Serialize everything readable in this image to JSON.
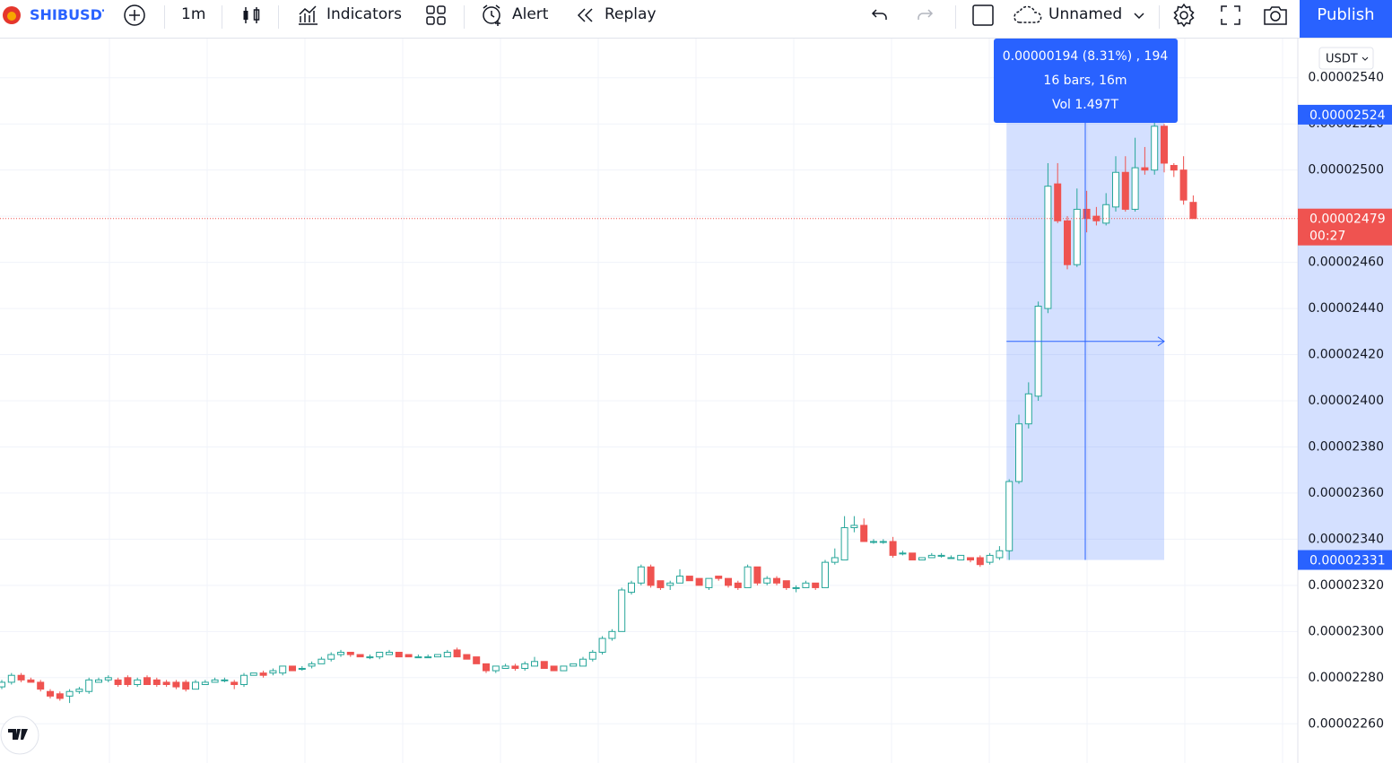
{
  "toolbar": {
    "symbol": "SHIBUSDT",
    "interval": "1m",
    "indicators": "Indicators",
    "alert": "Alert",
    "replay": "Replay",
    "layout": "Unnamed",
    "publish": "Publish"
  },
  "chart_data": {
    "type": "candlestick",
    "colors": {
      "up": "#26a69a",
      "down": "#ef5350",
      "marker": "#2962ff"
    },
    "currency": "USDT",
    "ylim": [
      2.243e-05,
      2.557e-05
    ],
    "yticks": [
      {
        "value": 2.26e-05,
        "label": "0.00002260"
      },
      {
        "value": 2.28e-05,
        "label": "0.00002280"
      },
      {
        "value": 2.3e-05,
        "label": "0.00002300"
      },
      {
        "value": 2.32e-05,
        "label": "0.00002320"
      },
      {
        "value": 2.34e-05,
        "label": "0.00002340"
      },
      {
        "value": 2.36e-05,
        "label": "0.00002360"
      },
      {
        "value": 2.38e-05,
        "label": "0.00002380"
      },
      {
        "value": 2.4e-05,
        "label": "0.00002400"
      },
      {
        "value": 2.42e-05,
        "label": "0.00002420"
      },
      {
        "value": 2.44e-05,
        "label": "0.00002440"
      },
      {
        "value": 2.46e-05,
        "label": "0.00002460"
      },
      {
        "value": 2.48e-05,
        "label": "0.00002480"
      },
      {
        "value": 2.5e-05,
        "label": "0.00002500"
      },
      {
        "value": 2.52e-05,
        "label": "0.00002520"
      },
      {
        "value": 2.54e-05,
        "label": "0.00002540"
      }
    ],
    "grid": true,
    "open": [
      2.276e-05,
      2.278e-05,
      2.281e-05,
      2.279e-05,
      2.278e-05,
      2.274e-05,
      2.273e-05,
      2.272e-05,
      2.274e-05,
      2.274e-05,
      2.278e-05,
      2.279e-05,
      2.279e-05,
      2.28e-05,
      2.277e-05,
      2.28e-05,
      2.279e-05,
      2.278e-05,
      2.278e-05,
      2.278e-05,
      2.275e-05,
      2.277e-05,
      2.278e-05,
      2.279e-05,
      2.278e-05,
      2.277e-05,
      2.281e-05,
      2.282e-05,
      2.282e-05,
      2.282e-05,
      2.285e-05,
      2.284e-05,
      2.285e-05,
      2.286e-05,
      2.288e-05,
      2.29e-05,
      2.291e-05,
      2.29e-05,
      2.289e-05,
      2.289e-05,
      2.29e-05,
      2.291e-05,
      2.29e-05,
      2.289e-05,
      2.289e-05,
      2.289e-05,
      2.289e-05,
      2.292e-05,
      2.29e-05,
      2.289e-05,
      2.286e-05,
      2.283e-05,
      2.284e-05,
      2.285e-05,
      2.284e-05,
      2.285e-05,
      2.287e-05,
      2.285e-05,
      2.283e-05,
      2.285e-05,
      2.285e-05,
      2.288e-05,
      2.291e-05,
      2.297e-05,
      2.3e-05,
      2.317e-05,
      2.321e-05,
      2.328e-05,
      2.322e-05,
      2.32e-05,
      2.321e-05,
      2.324e-05,
      2.323e-05,
      2.319e-05,
      2.324e-05,
      2.323e-05,
      2.321e-05,
      2.319e-05,
      2.328e-05,
      2.321e-05,
      2.323e-05,
      2.322e-05,
      2.319e-05,
      2.319e-05,
      2.321e-05,
      2.319e-05,
      2.33e-05,
      2.331e-05,
      2.345e-05,
      2.346e-05,
      2.339e-05,
      2.339e-05,
      2.339e-05,
      2.334e-05,
      2.334e-05,
      2.331e-05,
      2.332e-05,
      2.333e-05,
      2.332e-05,
      2.331e-05,
      2.332e-05,
      2.332e-05,
      2.33e-05,
      2.332e-05,
      2.335e-05,
      2.365e-05,
      2.39e-05,
      2.402e-05,
      2.44e-05,
      2.494e-05,
      2.478e-05,
      2.459e-05,
      2.483e-05,
      2.48e-05,
      2.477e-05,
      2.484e-05,
      2.499e-05,
      2.483e-05,
      2.501e-05,
      2.5e-05,
      2.519e-05,
      2.502e-05,
      2.5e-05,
      2.486e-05
    ],
    "high": [
      2.279e-05,
      2.282e-05,
      2.282e-05,
      2.28e-05,
      2.279e-05,
      2.275e-05,
      2.274e-05,
      2.275e-05,
      2.276e-05,
      2.28e-05,
      2.28e-05,
      2.281e-05,
      2.28e-05,
      2.281e-05,
      2.28e-05,
      2.281e-05,
      2.28e-05,
      2.279e-05,
      2.279e-05,
      2.279e-05,
      2.279e-05,
      2.279e-05,
      2.28e-05,
      2.28e-05,
      2.279e-05,
      2.282e-05,
      2.282e-05,
      2.283e-05,
      2.284e-05,
      2.285e-05,
      2.285e-05,
      2.285e-05,
      2.287e-05,
      2.289e-05,
      2.291e-05,
      2.292e-05,
      2.291e-05,
      2.29e-05,
      2.29e-05,
      2.291e-05,
      2.292e-05,
      2.291e-05,
      2.29e-05,
      2.29e-05,
      2.29e-05,
      2.29e-05,
      2.292e-05,
      2.293e-05,
      2.29e-05,
      2.289e-05,
      2.286e-05,
      2.285e-05,
      2.286e-05,
      2.286e-05,
      2.287e-05,
      2.289e-05,
      2.287e-05,
      2.285e-05,
      2.285e-05,
      2.286e-05,
      2.289e-05,
      2.292e-05,
      2.298e-05,
      2.301e-05,
      2.319e-05,
      2.322e-05,
      2.329e-05,
      2.329e-05,
      2.322e-05,
      2.322e-05,
      2.327e-05,
      2.324e-05,
      2.323e-05,
      2.323e-05,
      2.324e-05,
      2.323e-05,
      2.322e-05,
      2.329e-05,
      2.328e-05,
      2.324e-05,
      2.324e-05,
      2.322e-05,
      2.32e-05,
      2.322e-05,
      2.321e-05,
      2.331e-05,
      2.336e-05,
      2.35e-05,
      2.35e-05,
      2.349e-05,
      2.34e-05,
      2.34e-05,
      2.341e-05,
      2.335e-05,
      2.334e-05,
      2.332e-05,
      2.334e-05,
      2.334e-05,
      2.333e-05,
      2.333e-05,
      2.332e-05,
      2.333e-05,
      2.334e-05,
      2.337e-05,
      2.366e-05,
      2.394e-05,
      2.408e-05,
      2.443e-05,
      2.503e-05,
      2.503e-05,
      2.48e-05,
      2.492e-05,
      2.491e-05,
      2.484e-05,
      2.49e-05,
      2.506e-05,
      2.506e-05,
      2.514e-05,
      2.51e-05,
      2.524e-05,
      2.52e-05,
      2.503e-05,
      2.506e-05,
      2.489e-05
    ],
    "low": [
      2.275e-05,
      2.277e-05,
      2.278e-05,
      2.278e-05,
      2.274e-05,
      2.271e-05,
      2.27e-05,
      2.269e-05,
      2.273e-05,
      2.273e-05,
      2.278e-05,
      2.278e-05,
      2.276e-05,
      2.276e-05,
      2.276e-05,
      2.277e-05,
      2.276e-05,
      2.276e-05,
      2.275e-05,
      2.274e-05,
      2.275e-05,
      2.277e-05,
      2.278e-05,
      2.278e-05,
      2.275e-05,
      2.276e-05,
      2.281e-05,
      2.28e-05,
      2.281e-05,
      2.281e-05,
      2.283e-05,
      2.283e-05,
      2.284e-05,
      2.286e-05,
      2.287e-05,
      2.289e-05,
      2.289e-05,
      2.289e-05,
      2.288e-05,
      2.288e-05,
      2.29e-05,
      2.289e-05,
      2.289e-05,
      2.289e-05,
      2.289e-05,
      2.289e-05,
      2.289e-05,
      2.289e-05,
      2.288e-05,
      2.286e-05,
      2.282e-05,
      2.282e-05,
      2.284e-05,
      2.283e-05,
      2.283e-05,
      2.285e-05,
      2.284e-05,
      2.283e-05,
      2.283e-05,
      2.285e-05,
      2.285e-05,
      2.287e-05,
      2.29e-05,
      2.296e-05,
      2.3e-05,
      2.316e-05,
      2.32e-05,
      2.319e-05,
      2.318e-05,
      2.318e-05,
      2.321e-05,
      2.322e-05,
      2.32e-05,
      2.318e-05,
      2.322e-05,
      2.319e-05,
      2.318e-05,
      2.319e-05,
      2.32e-05,
      2.32e-05,
      2.32e-05,
      2.318e-05,
      2.317e-05,
      2.319e-05,
      2.318e-05,
      2.319e-05,
      2.329e-05,
      2.331e-05,
      2.343e-05,
      2.339e-05,
      2.338e-05,
      2.338e-05,
      2.332e-05,
      2.333e-05,
      2.331e-05,
      2.331e-05,
      2.332e-05,
      2.332e-05,
      2.332e-05,
      2.331e-05,
      2.33e-05,
      2.328e-05,
      2.329e-05,
      2.331e-05,
      2.331e-05,
      2.364e-05,
      2.388e-05,
      2.4e-05,
      2.438e-05,
      2.477e-05,
      2.457e-05,
      2.458e-05,
      2.473e-05,
      2.476e-05,
      2.476e-05,
      2.482e-05,
      2.482e-05,
      2.482e-05,
      2.498e-05,
      2.498e-05,
      2.499e-05,
      2.497e-05,
      2.485e-05,
      2.479e-05
    ],
    "close": [
      2.278e-05,
      2.281e-05,
      2.279e-05,
      2.278e-05,
      2.275e-05,
      2.272e-05,
      2.271e-05,
      2.274e-05,
      2.275e-05,
      2.279e-05,
      2.279e-05,
      2.28e-05,
      2.277e-05,
      2.277e-05,
      2.279e-05,
      2.277e-05,
      2.277e-05,
      2.277e-05,
      2.276e-05,
      2.275e-05,
      2.278e-05,
      2.278e-05,
      2.279e-05,
      2.279e-05,
      2.277e-05,
      2.281e-05,
      2.282e-05,
      2.281e-05,
      2.283e-05,
      2.285e-05,
      2.283e-05,
      2.284e-05,
      2.286e-05,
      2.288e-05,
      2.29e-05,
      2.291e-05,
      2.29e-05,
      2.289e-05,
      2.289e-05,
      2.291e-05,
      2.291e-05,
      2.289e-05,
      2.289e-05,
      2.289e-05,
      2.289e-05,
      2.29e-05,
      2.291e-05,
      2.289e-05,
      2.288e-05,
      2.286e-05,
      2.283e-05,
      2.285e-05,
      2.285e-05,
      2.284e-05,
      2.286e-05,
      2.287e-05,
      2.284e-05,
      2.283e-05,
      2.285e-05,
      2.286e-05,
      2.288e-05,
      2.291e-05,
      2.297e-05,
      2.3e-05,
      2.318e-05,
      2.321e-05,
      2.328e-05,
      2.32e-05,
      2.319e-05,
      2.321e-05,
      2.324e-05,
      2.322e-05,
      2.32e-05,
      2.323e-05,
      2.323e-05,
      2.32e-05,
      2.319e-05,
      2.328e-05,
      2.321e-05,
      2.323e-05,
      2.321e-05,
      2.319e-05,
      2.319e-05,
      2.321e-05,
      2.319e-05,
      2.33e-05,
      2.332e-05,
      2.345e-05,
      2.346e-05,
      2.339e-05,
      2.339e-05,
      2.339e-05,
      2.333e-05,
      2.334e-05,
      2.331e-05,
      2.332e-05,
      2.333e-05,
      2.333e-05,
      2.332e-05,
      2.333e-05,
      2.331e-05,
      2.329e-05,
      2.333e-05,
      2.335e-05,
      2.365e-05,
      2.39e-05,
      2.403e-05,
      2.441e-05,
      2.493e-05,
      2.478e-05,
      2.459e-05,
      2.483e-05,
      2.479e-05,
      2.478e-05,
      2.485e-05,
      2.499e-05,
      2.483e-05,
      2.501e-05,
      2.5e-05,
      2.519e-05,
      2.503e-05,
      2.5e-05,
      2.487e-05,
      2.479e-05
    ],
    "last_price": 2.479e-05,
    "countdown": "00:27",
    "marker_prices": [
      2.524e-05,
      2.331e-05
    ],
    "measure": {
      "change": "0.00000194 (8.31%) , 194",
      "bars": "16 bars, 16m",
      "volume": "Vol 1.497T"
    }
  }
}
